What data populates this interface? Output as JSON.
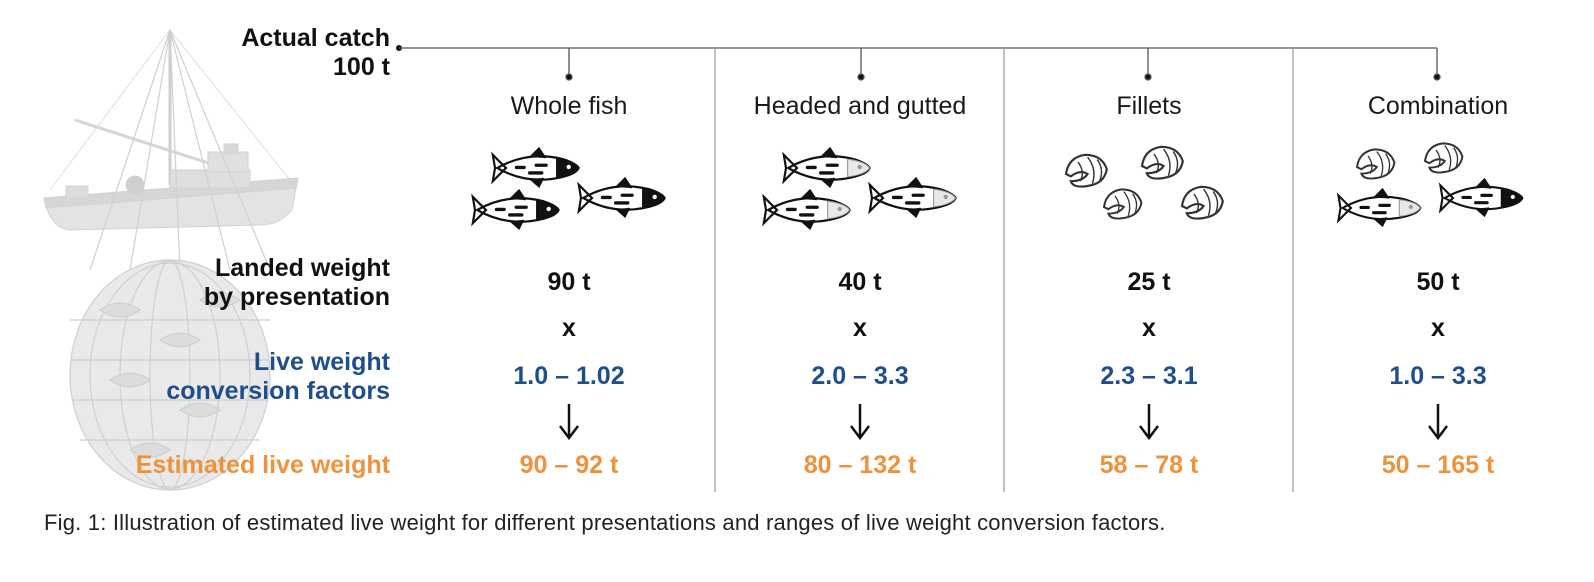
{
  "labels": {
    "actual_catch_line1": "Actual catch",
    "actual_catch_line2": "100 t",
    "landed_weight_line1": "Landed weight",
    "landed_weight_line2": "by presentation",
    "conversion_line1": "Live weight",
    "conversion_line2": "conversion factors",
    "estimated": "Estimated live weight"
  },
  "columns": [
    {
      "title": "Whole fish",
      "landed": "90 t",
      "operator": "x",
      "factor": "1.0 – 1.02",
      "estimated": "90 – 92 t",
      "icons": [
        "fish-whole-icon"
      ]
    },
    {
      "title": "Headed and gutted",
      "landed": "40 t",
      "operator": "x",
      "factor": "2.0 – 3.3",
      "estimated": "80 – 132 t",
      "icons": [
        "fish-headed-gutted-icon"
      ]
    },
    {
      "title": "Fillets",
      "landed": "25 t",
      "operator": "x",
      "factor": "2.3 – 3.1",
      "estimated": "58 – 78 t",
      "icons": [
        "fillet-icon"
      ]
    },
    {
      "title": "Combination",
      "landed": "50 t",
      "operator": "x",
      "factor": "1.0 – 3.3",
      "estimated": "50 – 165 t",
      "icons": [
        "fillet-icon",
        "fish-whole-icon"
      ]
    }
  ],
  "caption": "Fig. 1: Illustration of estimated live weight for different presentations and ranges of live weight conversion factors.",
  "colors": {
    "blue": "#1f4e8c",
    "orange": "#f0923c",
    "text": "#111111",
    "divider": "#9a9a9a",
    "illustration": "#d9d9d9"
  },
  "icons": [
    "fishing-boat-icon",
    "fish-net-icon",
    "arrow-down-icon"
  ]
}
